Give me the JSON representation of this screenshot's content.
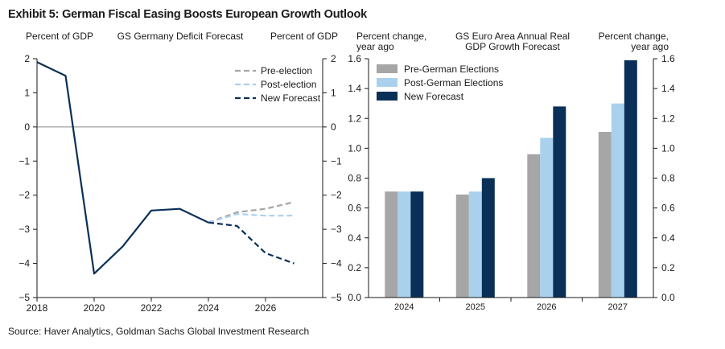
{
  "header": {
    "title": "Exhibit 5: German Fiscal Easing Boosts European Growth Outlook"
  },
  "footer": {
    "source": "Source: Haver Analytics, Goldman Sachs Global Investment Research"
  },
  "chart_data": [
    {
      "type": "line",
      "title": "GS Germany Deficit Forecast",
      "ylabel_left": "Percent of GDP",
      "ylabel_right": "Percent of GDP",
      "xlim": [
        2018,
        2028
      ],
      "ylim": [
        -5,
        2
      ],
      "x_ticks": [
        2018,
        2020,
        2022,
        2024,
        2026
      ],
      "y_ticks": [
        2,
        1,
        0,
        -1,
        -2,
        -3,
        -4,
        -5
      ],
      "y_tick_labels": [
        "2",
        "1",
        "0",
        "−1",
        "−2",
        "−3",
        "−4",
        "−5"
      ],
      "zero_line": true,
      "legend_position": "top-right",
      "historical": {
        "x": [
          2018,
          2019,
          2020,
          2021,
          2022,
          2023,
          2024
        ],
        "y": [
          1.9,
          1.5,
          -4.3,
          -3.5,
          -2.45,
          -2.4,
          -2.8
        ]
      },
      "series": [
        {
          "name": "Pre-election",
          "color": "#a6a6a6",
          "x": [
            2024,
            2025,
            2026,
            2027
          ],
          "y": [
            -2.8,
            -2.5,
            -2.4,
            -2.2
          ]
        },
        {
          "name": "Post-election",
          "color": "#a9d1ee",
          "x": [
            2024,
            2025,
            2026,
            2027
          ],
          "y": [
            -2.8,
            -2.55,
            -2.6,
            -2.6
          ]
        },
        {
          "name": "New Forecast",
          "color": "#0a3057",
          "x": [
            2024,
            2025,
            2026,
            2027
          ],
          "y": [
            -2.8,
            -2.9,
            -3.7,
            -4.0
          ]
        }
      ]
    },
    {
      "type": "bar",
      "title": "GS Euro Area Annual Real GDP Growth Forecast",
      "title_lines": [
        "GS Euro Area Annual Real",
        "GDP Growth Forecast"
      ],
      "ylabel_left_lines": [
        "Percent change,",
        "year ago"
      ],
      "ylabel_right_lines": [
        "Percent change,",
        "year ago"
      ],
      "ylim": [
        0,
        1.6
      ],
      "y_ticks": [
        0,
        0.2,
        0.4,
        0.6,
        0.8,
        1.0,
        1.2,
        1.4,
        1.6
      ],
      "y_tick_labels": [
        "0.0",
        "0.2",
        "0.4",
        "0.6",
        "0.8",
        "1.0",
        "1.2",
        "1.4",
        "1.6"
      ],
      "categories": [
        "2024",
        "2025",
        "2026",
        "2027"
      ],
      "legend_position": "top-left",
      "series": [
        {
          "name": "Pre-German Elections",
          "color": "#a6a6a6",
          "values": [
            0.71,
            0.69,
            0.96,
            1.11
          ]
        },
        {
          "name": "Post-German Elections",
          "color": "#a9d1ee",
          "values": [
            0.71,
            0.71,
            1.07,
            1.3
          ]
        },
        {
          "name": "New Forecast",
          "color": "#0a3057",
          "values": [
            0.71,
            0.8,
            1.28,
            1.59
          ]
        }
      ]
    }
  ]
}
